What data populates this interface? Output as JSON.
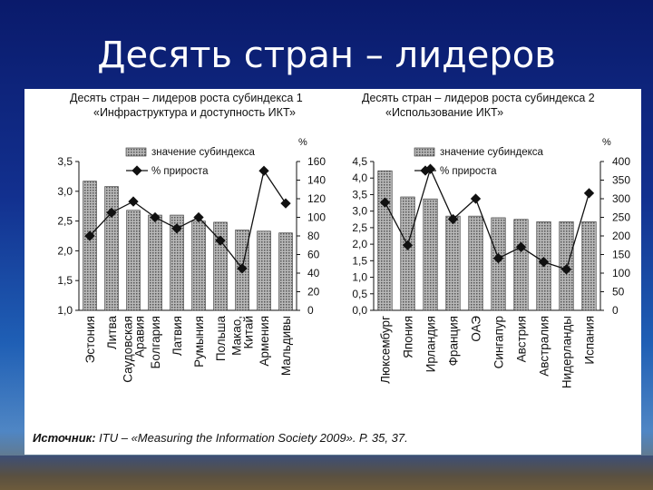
{
  "slide": {
    "title": "Десять стран – лидеров",
    "source_label": "Источник:",
    "source_text": " ITU – «Measuring the Information Society 2009». Р. 35, 37."
  },
  "chart_data": [
    {
      "type": "bar",
      "title_line1": "Десять стран – лидеров роста субиндекса 1",
      "title_line2": "«Инфраструктура и доступность ИКТ»",
      "categories": [
        "Эстония",
        "Литва",
        "Саудовская Аравия",
        "Болгария",
        "Латвия",
        "Румыния",
        "Польша",
        "Макао, Китай",
        "Армения",
        "Мальдивы"
      ],
      "category_lines": [
        [
          "Эстония"
        ],
        [
          "Литва"
        ],
        [
          "Саудовская",
          "Аравия"
        ],
        [
          "Болгария"
        ],
        [
          "Латвия"
        ],
        [
          "Румыния"
        ],
        [
          "Польша"
        ],
        [
          "Макао,",
          "Китай"
        ],
        [
          "Армения"
        ],
        [
          "Мальдивы"
        ]
      ],
      "series": [
        {
          "name": "значение субиндекса",
          "values": [
            3.17,
            3.08,
            2.68,
            2.6,
            2.6,
            2.5,
            2.48,
            2.35,
            2.33,
            2.3
          ],
          "axis": "left"
        },
        {
          "name": "% прироста",
          "values": [
            80,
            105,
            117,
            100,
            88,
            100,
            75,
            45,
            150,
            115
          ],
          "axis": "right"
        }
      ],
      "ylim": [
        1.0,
        3.5
      ],
      "yticks": [
        "1,0",
        "1,5",
        "2,0",
        "2,5",
        "3,0",
        "3,5"
      ],
      "y2lim": [
        0,
        160
      ],
      "y2ticks": [
        "0",
        "20",
        "40",
        "60",
        "80",
        "100",
        "120",
        "140",
        "160"
      ],
      "y2label": "%"
    },
    {
      "type": "bar",
      "title_line1": "Десять стран – лидеров роста субиндекса 2",
      "title_line2": "«Использование ИКТ»",
      "categories": [
        "Люксембург",
        "Япония",
        "Ирландия",
        "Франция",
        "ОАЭ",
        "Сингапур",
        "Австрия",
        "Австралия",
        "Нидерланды",
        "Испания"
      ],
      "category_lines": [
        [
          "Люксембург"
        ],
        [
          "Япония"
        ],
        [
          "Ирландия"
        ],
        [
          "Франция"
        ],
        [
          "ОАЭ"
        ],
        [
          "Сингапур"
        ],
        [
          "Австрия"
        ],
        [
          "Австралия"
        ],
        [
          "Нидерланды"
        ],
        [
          "Испания"
        ]
      ],
      "series": [
        {
          "name": "значение субиндекса",
          "values": [
            4.22,
            3.43,
            3.37,
            2.85,
            2.85,
            2.8,
            2.75,
            2.68,
            2.68,
            2.68
          ],
          "axis": "left"
        },
        {
          "name": "% прироста",
          "values": [
            290,
            175,
            380,
            245,
            300,
            140,
            170,
            130,
            110,
            315
          ],
          "axis": "right"
        }
      ],
      "ylim": [
        0.0,
        4.5
      ],
      "yticks": [
        "0,0",
        "0,5",
        "1,0",
        "1,5",
        "2,0",
        "2,5",
        "3,0",
        "3,5",
        "4,0",
        "4,5"
      ],
      "y2lim": [
        0,
        400
      ],
      "y2ticks": [
        "0",
        "50",
        "100",
        "150",
        "200",
        "250",
        "300",
        "350",
        "400"
      ],
      "y2label": "%"
    }
  ],
  "style": {
    "bar_fill": "#9a9a9a",
    "line_color": "#111111"
  }
}
